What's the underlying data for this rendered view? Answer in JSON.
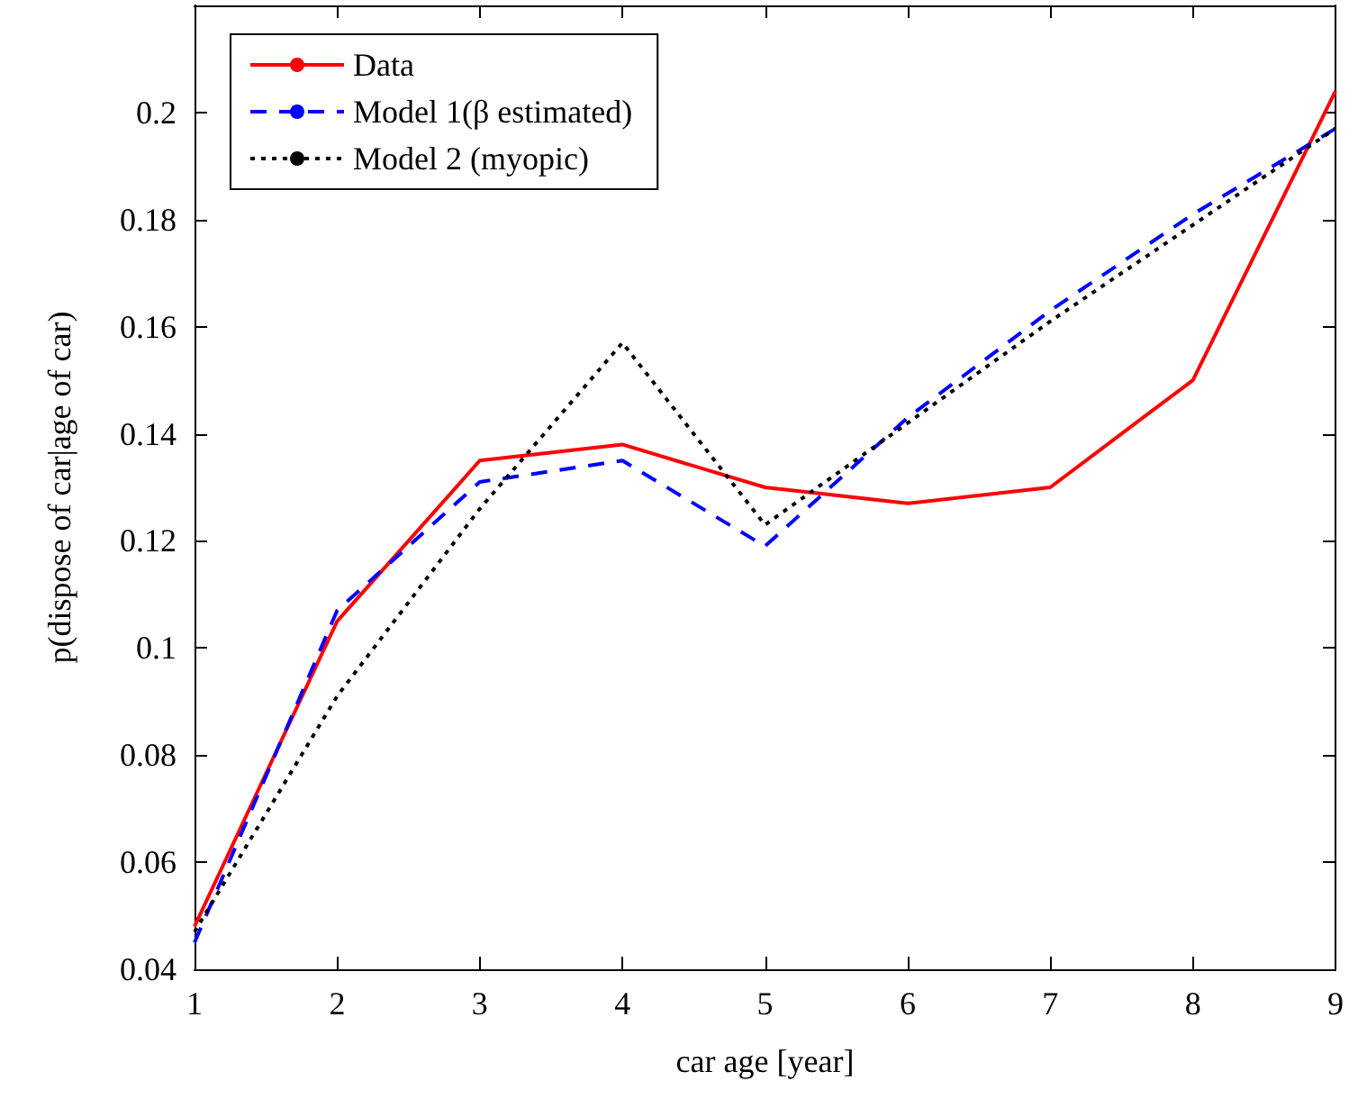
{
  "chart_data": {
    "type": "line",
    "xlabel": "car age [year]",
    "ylabel": "p(dispose of car|age of car)",
    "x": [
      1,
      2,
      3,
      4,
      5,
      6,
      7,
      8,
      9
    ],
    "series": [
      {
        "name": "Data",
        "color": "#ff0000",
        "line_style": "solid",
        "values": [
          0.048,
          0.105,
          0.135,
          0.138,
          0.13,
          0.127,
          0.13,
          0.15,
          0.204
        ]
      },
      {
        "name": "Model 1(β estimated)",
        "color": "#0000ff",
        "line_style": "dashed",
        "values": [
          0.045,
          0.107,
          0.131,
          0.135,
          0.119,
          0.143,
          0.163,
          0.181,
          0.197
        ]
      },
      {
        "name": "Model 2 (myopic)",
        "color": "#000000",
        "line_style": "dotted",
        "values": [
          0.047,
          0.091,
          0.126,
          0.157,
          0.123,
          0.142,
          0.161,
          0.179,
          0.197
        ]
      }
    ],
    "xlim": [
      1,
      9
    ],
    "xticks": [
      1,
      2,
      3,
      4,
      5,
      6,
      7,
      8,
      9
    ],
    "ylim": [
      0.04,
      0.22
    ],
    "yticks": [
      0.04,
      0.06,
      0.08,
      0.1,
      0.12,
      0.14,
      0.16,
      0.18,
      0.2
    ],
    "grid": false,
    "legend": "top left",
    "marker": "none"
  }
}
